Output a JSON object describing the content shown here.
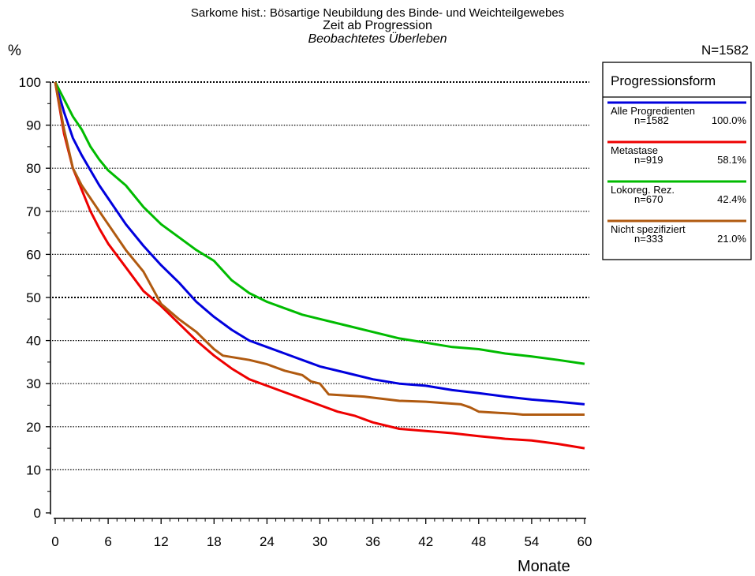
{
  "header": {
    "title": "Sarkome hist.: Bösartige Neubildung des Binde- und Weichteilgewebes",
    "subtitle": "Zeit ab Progression",
    "subtitle2": "Beobachtetes Überleben",
    "ylabel": "%",
    "n_total": "N=1582",
    "xlabel": "Monate"
  },
  "legend": {
    "title": "Progressionsform",
    "entries": [
      {
        "name": "Alle Progredienten",
        "n": "n=1582",
        "pct": "100.0%",
        "color": "#0000dd"
      },
      {
        "name": "Metastase",
        "n": "n=919",
        "pct": "58.1%",
        "color": "#ee0000"
      },
      {
        "name": "Lokoreg. Rez.",
        "n": "n=670",
        "pct": "42.4%",
        "color": "#00bb00"
      },
      {
        "name": "Nicht spezifiziert",
        "n": "n=333",
        "pct": "21.0%",
        "color": "#b05a10"
      }
    ]
  },
  "chart_data": {
    "type": "line",
    "title": "Sarkome hist.: Bösartige Neubildung des Binde- und Weichteilgewebes",
    "xlabel": "Monate",
    "ylabel": "%",
    "xlim": [
      0,
      60
    ],
    "ylim": [
      0,
      100
    ],
    "xticks": [
      0,
      6,
      12,
      18,
      24,
      30,
      36,
      42,
      48,
      54,
      60
    ],
    "yticks": [
      0,
      10,
      20,
      30,
      40,
      50,
      60,
      70,
      80,
      90,
      100
    ],
    "grid": "horizontal dotted",
    "legend_position": "top-right",
    "series": [
      {
        "name": "Alle Progredienten",
        "color": "#0000dd",
        "x": [
          0,
          1,
          2,
          3,
          4,
          5,
          6,
          8,
          10,
          12,
          14,
          16,
          18,
          20,
          22,
          24,
          26,
          28,
          30,
          33,
          36,
          39,
          42,
          45,
          48,
          51,
          54,
          57,
          60
        ],
        "y": [
          100,
          93,
          87,
          83,
          79.5,
          76,
          73,
          67,
          62,
          57.5,
          53.5,
          49,
          45.5,
          42.5,
          40,
          38.5,
          37,
          35.5,
          34,
          32.5,
          31,
          30,
          29.5,
          28.5,
          27.8,
          27,
          26.3,
          25.8,
          25.2
        ]
      },
      {
        "name": "Metastase",
        "color": "#ee0000",
        "x": [
          0,
          1,
          2,
          3,
          4,
          5,
          6,
          8,
          10,
          12,
          14,
          16,
          18,
          20,
          22,
          24,
          26,
          28,
          30,
          32,
          34,
          36,
          39,
          42,
          45,
          48,
          51,
          54,
          57,
          60
        ],
        "y": [
          100,
          88,
          80,
          75,
          70,
          66,
          62.5,
          57,
          51.5,
          48,
          44,
          40,
          36.5,
          33.5,
          31,
          29.5,
          28,
          26.5,
          25,
          23.5,
          22.5,
          21,
          19.5,
          19,
          18.5,
          17.8,
          17.2,
          16.8,
          16,
          15
        ]
      },
      {
        "name": "Lokoreg. Rez.",
        "color": "#00bb00",
        "x": [
          0,
          1,
          2,
          3,
          4,
          5,
          6,
          8,
          10,
          12,
          14,
          16,
          18,
          20,
          22,
          24,
          26,
          28,
          30,
          33,
          36,
          39,
          42,
          45,
          48,
          51,
          54,
          57,
          60
        ],
        "y": [
          100,
          96,
          92,
          89,
          85,
          82,
          79.5,
          76,
          71,
          67,
          64,
          61,
          58.5,
          54,
          51,
          49,
          47.5,
          46,
          45,
          43.5,
          42,
          40.5,
          39.5,
          38.5,
          38,
          37,
          36.3,
          35.5,
          34.6
        ]
      },
      {
        "name": "Nicht spezifiziert",
        "color": "#b05a10",
        "x": [
          0,
          1,
          2,
          3,
          4,
          5,
          6,
          8,
          10,
          12,
          14,
          16,
          18,
          19,
          22,
          24,
          26,
          28,
          29,
          30,
          31,
          35,
          39,
          42,
          46,
          47,
          48,
          52,
          53,
          60
        ],
        "y": [
          100,
          89,
          80,
          76,
          73,
          70,
          67,
          61,
          56,
          48.5,
          45,
          42,
          38,
          36.5,
          35.5,
          34.5,
          33,
          32,
          30.5,
          30,
          27.5,
          27,
          26,
          25.8,
          25.2,
          24.5,
          23.5,
          23,
          22.8,
          22.8
        ]
      }
    ]
  }
}
